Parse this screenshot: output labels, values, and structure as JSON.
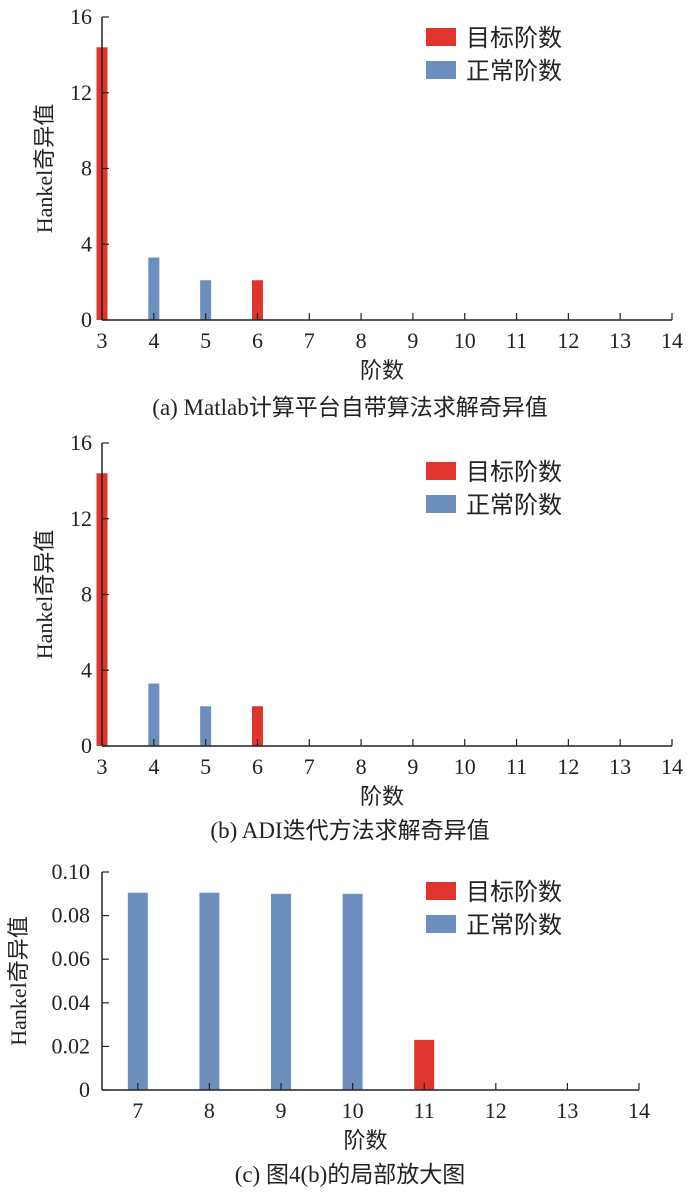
{
  "colors": {
    "target": "#e0342f",
    "normal": "#6d8fbd",
    "axis": "#222222"
  },
  "chart_data": [
    {
      "type": "bar",
      "caption": "(a) Matlab计算平台自带算法求解奇异值",
      "xlabel": "阶数",
      "ylabel": "Hankel奇异值",
      "xlim": [
        3,
        14
      ],
      "ylim": [
        0,
        16
      ],
      "x_ticks": [
        3,
        4,
        5,
        6,
        7,
        8,
        9,
        10,
        11,
        12,
        13,
        14
      ],
      "y_ticks": [
        0,
        4,
        8,
        12,
        16
      ],
      "y_tick_labels": [
        "0",
        "4",
        "8",
        "12",
        "16"
      ],
      "legend": {
        "placement": "top-right",
        "entries": [
          {
            "key": "target",
            "label": "目标阶数"
          },
          {
            "key": "normal",
            "label": "正常阶数"
          }
        ]
      },
      "series": [
        {
          "key": "target",
          "x": [
            3,
            6
          ],
          "values": [
            14.4,
            2.1
          ]
        },
        {
          "key": "normal",
          "x": [
            4,
            5
          ],
          "values": [
            3.3,
            2.1
          ]
        }
      ]
    },
    {
      "type": "bar",
      "caption": "(b) ADI迭代方法求解奇异值",
      "xlabel": "阶数",
      "ylabel": "Hankel奇异值",
      "xlim": [
        3,
        14
      ],
      "ylim": [
        0,
        16
      ],
      "x_ticks": [
        3,
        4,
        5,
        6,
        7,
        8,
        9,
        10,
        11,
        12,
        13,
        14
      ],
      "y_ticks": [
        0,
        4,
        8,
        12,
        16
      ],
      "y_tick_labels": [
        "0",
        "4",
        "8",
        "12",
        "16"
      ],
      "legend": {
        "placement": "top-right",
        "entries": [
          {
            "key": "target",
            "label": "目标阶数"
          },
          {
            "key": "normal",
            "label": "正常阶数"
          }
        ]
      },
      "series": [
        {
          "key": "target",
          "x": [
            3,
            6
          ],
          "values": [
            14.4,
            2.1
          ]
        },
        {
          "key": "normal",
          "x": [
            4,
            5
          ],
          "values": [
            3.3,
            2.1
          ]
        }
      ]
    },
    {
      "type": "bar",
      "caption": "(c) 图4(b)的局部放大图",
      "xlabel": "阶数",
      "ylabel": "Hankel奇异值",
      "xlim": [
        6.5,
        14
      ],
      "ylim": [
        0,
        0.1
      ],
      "x_ticks": [
        7,
        8,
        9,
        10,
        11,
        12,
        13,
        14
      ],
      "y_ticks": [
        0,
        0.02,
        0.04,
        0.06,
        0.08,
        0.1
      ],
      "y_tick_labels": [
        "0",
        "0.02",
        "0.04",
        "0.06",
        "0.08",
        "0.10"
      ],
      "legend": {
        "placement": "top-right",
        "entries": [
          {
            "key": "target",
            "label": "目标阶数"
          },
          {
            "key": "normal",
            "label": "正常阶数"
          }
        ]
      },
      "series": [
        {
          "key": "target",
          "x": [
            11
          ],
          "values": [
            0.023
          ]
        },
        {
          "key": "normal",
          "x": [
            7,
            8,
            9,
            10
          ],
          "values": [
            0.0905,
            0.0905,
            0.09,
            0.09
          ]
        }
      ]
    }
  ]
}
